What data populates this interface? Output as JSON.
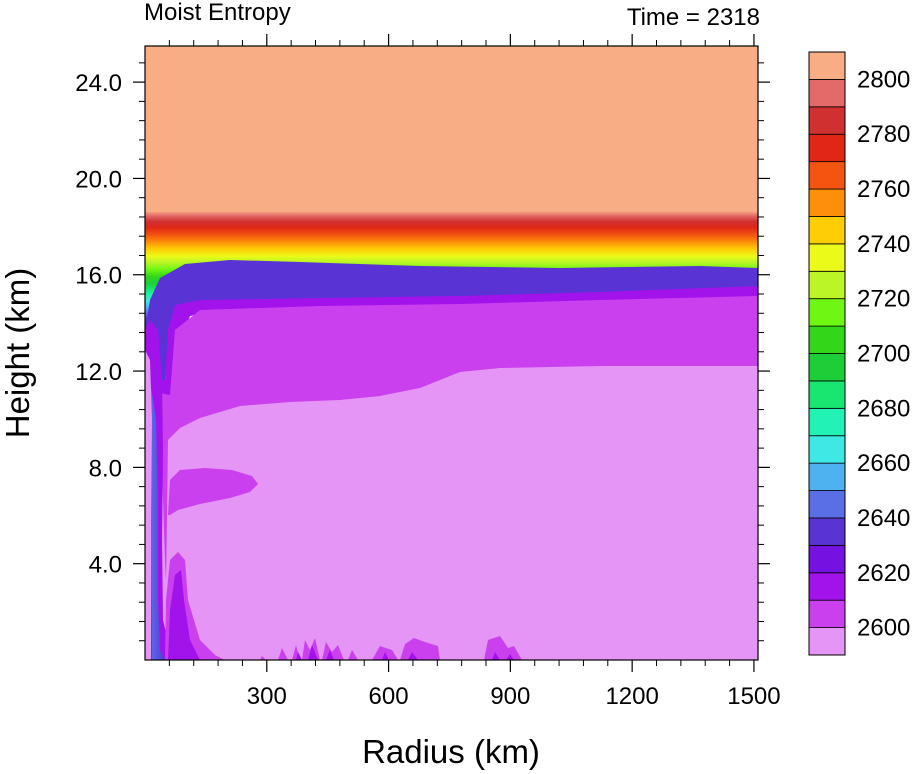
{
  "chart_data": {
    "type": "heatmap",
    "title": "Moist Entropy",
    "subtitle": "Time = 2318",
    "xlabel": "Radius (km)",
    "ylabel": "Height (km)",
    "xlim": [
      0,
      1510
    ],
    "ylim": [
      0,
      25.5
    ],
    "x_ticks": [
      300,
      600,
      900,
      1200,
      1500
    ],
    "x_tick_labels": [
      "300",
      "600",
      "900",
      "1200",
      "1500"
    ],
    "y_ticks": [
      4,
      8,
      12,
      16,
      20,
      24
    ],
    "y_tick_labels": [
      "4.0",
      "8.0",
      "12.0",
      "16.0",
      "20.0",
      "24.0"
    ],
    "colorbar": {
      "levels": [
        2590,
        2600,
        2610,
        2620,
        2630,
        2640,
        2650,
        2660,
        2670,
        2680,
        2690,
        2700,
        2710,
        2720,
        2730,
        2740,
        2750,
        2760,
        2770,
        2780,
        2790,
        2800
      ],
      "labeled_levels": [
        2600,
        2620,
        2640,
        2660,
        2680,
        2700,
        2720,
        2740,
        2760,
        2780,
        2800
      ],
      "labels": [
        "2600",
        "2620",
        "2640",
        "2660",
        "2680",
        "2700",
        "2720",
        "2740",
        "2760",
        "2780",
        "2800"
      ],
      "colors": [
        "#e595f6",
        "#cb40ee",
        "#a212ea",
        "#7512e2",
        "#5a33d4",
        "#5a6ee6",
        "#4fb2f0",
        "#3ee8e4",
        "#22f2b4",
        "#19e670",
        "#1ccf38",
        "#34d61a",
        "#6ef712",
        "#bbf525",
        "#ebfa18",
        "#ffcd06",
        "#fe8f08",
        "#f35410",
        "#e02716",
        "#d03030",
        "#e36a68",
        "#f8ad85"
      ]
    },
    "fields": [
      {
        "value_band": "2800+",
        "color": "#f8ad85",
        "region": "r 0-1510, z 18.7-25.5"
      },
      {
        "value_band": "2610-2800",
        "color_sequence": "rainbow",
        "region": "tropopause layer z ~15.5-18.7, dipping to z ~14 near r < 60"
      },
      {
        "value_band": "2630-2640",
        "color": "#5a33d4",
        "region": "z ~15.3-16.6, thick near eyewall down to z ~13"
      },
      {
        "value_band": "2620-2630",
        "color": "#a212ea",
        "region": "z ~15.0-15.6 and eyewall column r 10-90 to surface"
      },
      {
        "value_band": "2610-2620",
        "color": "#cb40ee",
        "region": "z ~10.5-15.0 at r 150-450, z ~12.3-15.0 at r 950-1510"
      },
      {
        "value_band": "< 2610",
        "color": "#e595f6",
        "region": "lower troposphere r 150-1510, z 0-12.3"
      },
      {
        "value_band": "2610-2620",
        "color": "#cb40ee",
        "region": "mid-level blob r 90-285, z 6.3-8.1"
      }
    ]
  }
}
